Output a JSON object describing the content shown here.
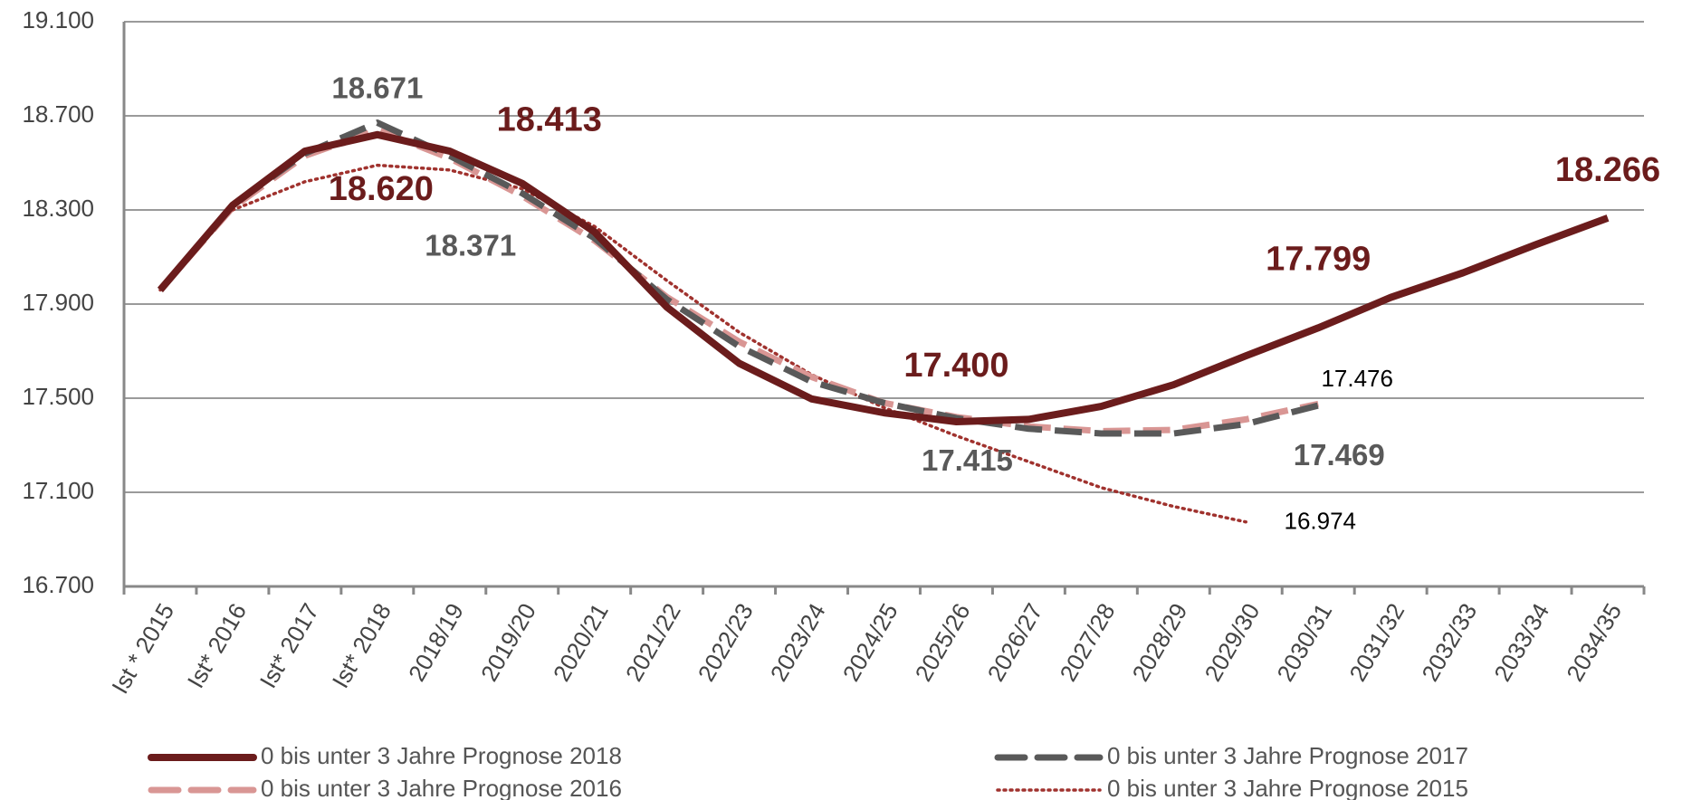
{
  "chart_data": {
    "type": "line",
    "categories": [
      "Ist * 2015",
      "Ist* 2016",
      "Ist* 2017",
      "Ist* 2018",
      "2018/19",
      "2019/20",
      "2020/21",
      "2021/22",
      "2022/23",
      "2023/24",
      "2024/25",
      "2025/26",
      "2026/27",
      "2027/28",
      "2028/29",
      "2029/30",
      "2030/31",
      "2031/32",
      "2032/33",
      "2033/34",
      "2034/35"
    ],
    "series": [
      {
        "name": "0 bis unter 3 Jahre Prognose 2018",
        "color": "#6b1c1c",
        "style": "solid",
        "values": [
          17960,
          18320,
          18550,
          18620,
          18550,
          18413,
          18207,
          17887,
          17648,
          17497,
          17438,
          17400,
          17410,
          17465,
          17557,
          17680,
          17799,
          17928,
          18033,
          18152,
          18266
        ],
        "value_labels": [
          null,
          null,
          null,
          "18.620",
          null,
          "18.413",
          null,
          null,
          null,
          null,
          null,
          "17.400",
          null,
          null,
          null,
          null,
          "17.799",
          null,
          null,
          null,
          "18.266"
        ]
      },
      {
        "name": "0 bis unter 3 Jahre Prognose 2017",
        "color": "#595959",
        "style": "dashed",
        "values": [
          17960,
          18320,
          18540,
          18671,
          18530,
          18371,
          18180,
          17920,
          17720,
          17570,
          17480,
          17415,
          17370,
          17350,
          17350,
          17390,
          17469,
          null,
          null,
          null,
          null
        ],
        "value_labels": [
          null,
          null,
          null,
          "18.671",
          null,
          "18.371",
          null,
          null,
          null,
          null,
          null,
          "17.415",
          null,
          null,
          null,
          null,
          "17.469",
          null,
          null,
          null,
          null
        ]
      },
      {
        "name": "0 bis unter 3 Jahre Prognose 2016",
        "color": "#d99694",
        "style": "dashed",
        "values": [
          17960,
          18310,
          18530,
          18640,
          18520,
          18360,
          18170,
          17930,
          17740,
          17590,
          17480,
          17420,
          17380,
          17360,
          17365,
          17410,
          17476,
          null,
          null,
          null,
          null
        ],
        "value_labels": [
          null,
          null,
          null,
          null,
          null,
          null,
          null,
          null,
          null,
          null,
          null,
          null,
          null,
          null,
          null,
          null,
          "17.476",
          null,
          null,
          null,
          null
        ]
      },
      {
        "name": "0 bis unter 3 Jahre Prognose 2015",
        "color": "#a0322e",
        "style": "dotted",
        "values": [
          17960,
          18300,
          18420,
          18490,
          18470,
          18390,
          18230,
          18000,
          17780,
          17600,
          17460,
          17340,
          17230,
          17120,
          17040,
          16974,
          null,
          null,
          null,
          null,
          null
        ],
        "value_labels": [
          null,
          null,
          null,
          null,
          null,
          null,
          null,
          null,
          null,
          null,
          null,
          null,
          null,
          null,
          null,
          "16.974",
          null,
          null,
          null,
          null,
          null
        ]
      }
    ],
    "ylim": [
      16700,
      19100
    ],
    "yticks": [
      {
        "value": 16700,
        "label": "16.700"
      },
      {
        "value": 17100,
        "label": "17.100"
      },
      {
        "value": 17500,
        "label": "17.500"
      },
      {
        "value": 17900,
        "label": "17.900"
      },
      {
        "value": 18300,
        "label": "18.300"
      },
      {
        "value": 18700,
        "label": "18.700"
      },
      {
        "value": 19100,
        "label": "19.100"
      }
    ],
    "grid": true,
    "legend": "bottom"
  }
}
